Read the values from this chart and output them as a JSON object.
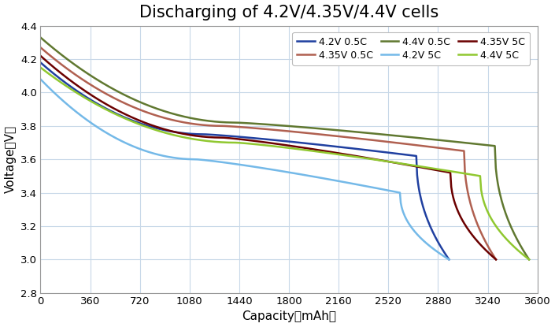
{
  "title": "Discharging of 4.2V/4.35V/4.4V cells",
  "xlabel": "Capacity（mAh）",
  "ylabel": "Voltage（V）",
  "xlim": [
    0,
    3600
  ],
  "ylim": [
    2.8,
    4.4
  ],
  "xticks": [
    0,
    360,
    720,
    1080,
    1440,
    1800,
    2160,
    2520,
    2880,
    3240,
    3600
  ],
  "yticks": [
    2.8,
    3.0,
    3.2,
    3.4,
    3.6,
    3.8,
    4.0,
    4.2,
    4.4
  ],
  "curves": [
    {
      "key": "4.2V_0.5C",
      "color": "#2040a0",
      "label": "4.2V 0.5C",
      "v0": 4.18,
      "x_end": 2960,
      "knee1": 0.4,
      "knee2": 0.92,
      "v_mid": 3.75,
      "v_knee": 3.62,
      "v_end": 3.0,
      "is_5C": false,
      "linewidth": 1.8
    },
    {
      "key": "4.2V_5C",
      "color": "#74b9e8",
      "label": "4.2V 5C",
      "v0": 4.08,
      "x_end": 2960,
      "knee1": 0.38,
      "knee2": 0.88,
      "v_mid": 3.6,
      "v_knee": 3.4,
      "v_end": 3.0,
      "is_5C": true,
      "linewidth": 1.8
    },
    {
      "key": "4.35V_0.5C",
      "color": "#b06050",
      "label": "4.35V 0.5C",
      "v0": 4.27,
      "x_end": 3300,
      "knee1": 0.4,
      "knee2": 0.93,
      "v_mid": 3.8,
      "v_knee": 3.65,
      "v_end": 3.0,
      "is_5C": false,
      "linewidth": 1.8
    },
    {
      "key": "4.35V_5C",
      "color": "#6b0000",
      "label": "4.35V 5C",
      "v0": 4.22,
      "x_end": 3300,
      "knee1": 0.4,
      "knee2": 0.9,
      "v_mid": 3.73,
      "v_knee": 3.52,
      "v_end": 3.0,
      "is_5C": true,
      "linewidth": 1.8
    },
    {
      "key": "4.4V_0.5C",
      "color": "#607830",
      "label": "4.4V 0.5C",
      "v0": 4.33,
      "x_end": 3540,
      "knee1": 0.4,
      "knee2": 0.93,
      "v_mid": 3.82,
      "v_knee": 3.68,
      "v_end": 3.0,
      "is_5C": false,
      "linewidth": 1.8
    },
    {
      "key": "4.4V_5C",
      "color": "#90c830",
      "label": "4.4V 5C",
      "v0": 4.15,
      "x_end": 3540,
      "knee1": 0.4,
      "knee2": 0.9,
      "v_mid": 3.7,
      "v_knee": 3.5,
      "v_end": 3.0,
      "is_5C": true,
      "linewidth": 1.8
    }
  ],
  "legend_order": [
    "4.2V_0.5C",
    "4.35V_0.5C",
    "4.4V_0.5C",
    "4.2V_5C",
    "4.35V_5C",
    "4.4V_5C"
  ],
  "legend_labels": [
    "4.2V 0.5C",
    "4.35V 0.5C",
    "4.4V 0.5C",
    "4.2V 5C",
    "4.35V 5C",
    "4.4V 5C"
  ],
  "background_color": "#ffffff",
  "grid_color": "#c8d8e8",
  "title_fontsize": 15
}
